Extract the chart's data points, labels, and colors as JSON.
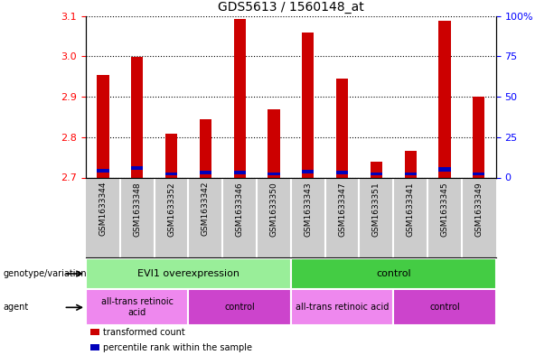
{
  "title": "GDS5613 / 1560148_at",
  "samples": [
    "GSM1633344",
    "GSM1633348",
    "GSM1633352",
    "GSM1633342",
    "GSM1633346",
    "GSM1633350",
    "GSM1633343",
    "GSM1633347",
    "GSM1633351",
    "GSM1633341",
    "GSM1633345",
    "GSM1633349"
  ],
  "red_values": [
    2.955,
    2.998,
    2.808,
    2.845,
    3.092,
    2.87,
    3.06,
    2.945,
    2.74,
    2.765,
    3.088,
    2.9
  ],
  "blue_values": [
    2.712,
    2.718,
    2.705,
    2.708,
    2.708,
    2.705,
    2.71,
    2.708,
    2.705,
    2.705,
    2.715,
    2.705
  ],
  "blue_heights": [
    0.01,
    0.01,
    0.008,
    0.008,
    0.008,
    0.008,
    0.01,
    0.008,
    0.008,
    0.008,
    0.01,
    0.008
  ],
  "ymin": 2.7,
  "ymax": 3.1,
  "yticks_left": [
    2.7,
    2.8,
    2.9,
    3.0,
    3.1
  ],
  "yticks_right": [
    0,
    25,
    50,
    75,
    100
  ],
  "bar_color_red": "#cc0000",
  "bar_color_blue": "#0000bb",
  "bar_width": 0.35,
  "genotype_groups": [
    {
      "label": "EVI1 overexpression",
      "start": 0,
      "end": 6,
      "color": "#99ee99"
    },
    {
      "label": "control",
      "start": 6,
      "end": 12,
      "color": "#44cc44"
    }
  ],
  "agent_groups": [
    {
      "label": "all-trans retinoic\nacid",
      "start": 0,
      "end": 3,
      "color": "#ee88ee"
    },
    {
      "label": "control",
      "start": 3,
      "end": 6,
      "color": "#cc44cc"
    },
    {
      "label": "all-trans retinoic acid",
      "start": 6,
      "end": 9,
      "color": "#ee88ee"
    },
    {
      "label": "control",
      "start": 9,
      "end": 12,
      "color": "#cc44cc"
    }
  ],
  "legend_items": [
    {
      "label": "transformed count",
      "color": "#cc0000"
    },
    {
      "label": "percentile rank within the sample",
      "color": "#0000bb"
    }
  ],
  "row_labels": [
    "genotype/variation",
    "agent"
  ],
  "plot_bg": "#ffffff",
  "fig_bg": "#ffffff",
  "tick_area_bg": "#cccccc"
}
